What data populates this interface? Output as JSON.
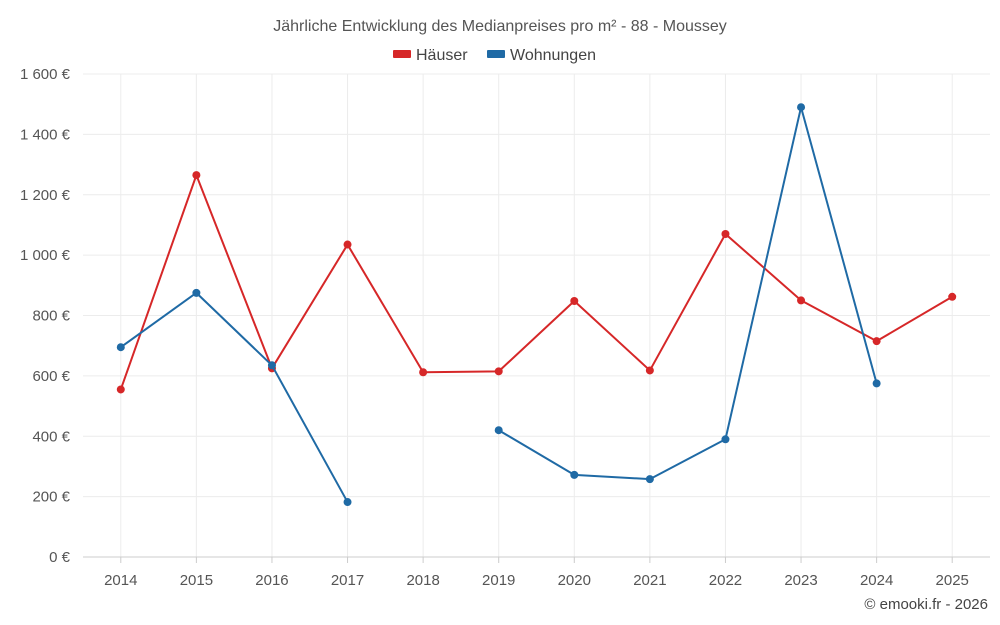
{
  "chart_data": {
    "type": "line",
    "title": "Jährliche Entwicklung des Medianpreises pro m² - 88 - Moussey",
    "categories": [
      "2014",
      "2015",
      "2016",
      "2017",
      "2018",
      "2019",
      "2020",
      "2021",
      "2022",
      "2023",
      "2024",
      "2025"
    ],
    "series": [
      {
        "name": "Häuser",
        "color": "#d62728",
        "values": [
          555,
          1265,
          625,
          1035,
          612,
          615,
          848,
          618,
          1070,
          850,
          715,
          862
        ]
      },
      {
        "name": "Wohnungen",
        "color": "#1f6aa5",
        "values": [
          695,
          875,
          635,
          182,
          null,
          420,
          272,
          258,
          390,
          1490,
          575,
          null
        ]
      }
    ],
    "ylim": [
      0,
      1600
    ],
    "yticks": [
      0,
      200,
      400,
      600,
      800,
      1000,
      1200,
      1400,
      1600
    ],
    "ytick_labels": [
      "0 €",
      "200 €",
      "400 €",
      "600 €",
      "800 €",
      "1 000 €",
      "1 200 €",
      "1 400 €",
      "1 600 €"
    ],
    "legend_position": "top-center",
    "grid": true,
    "credit": "© emooki.fr - 2026"
  }
}
